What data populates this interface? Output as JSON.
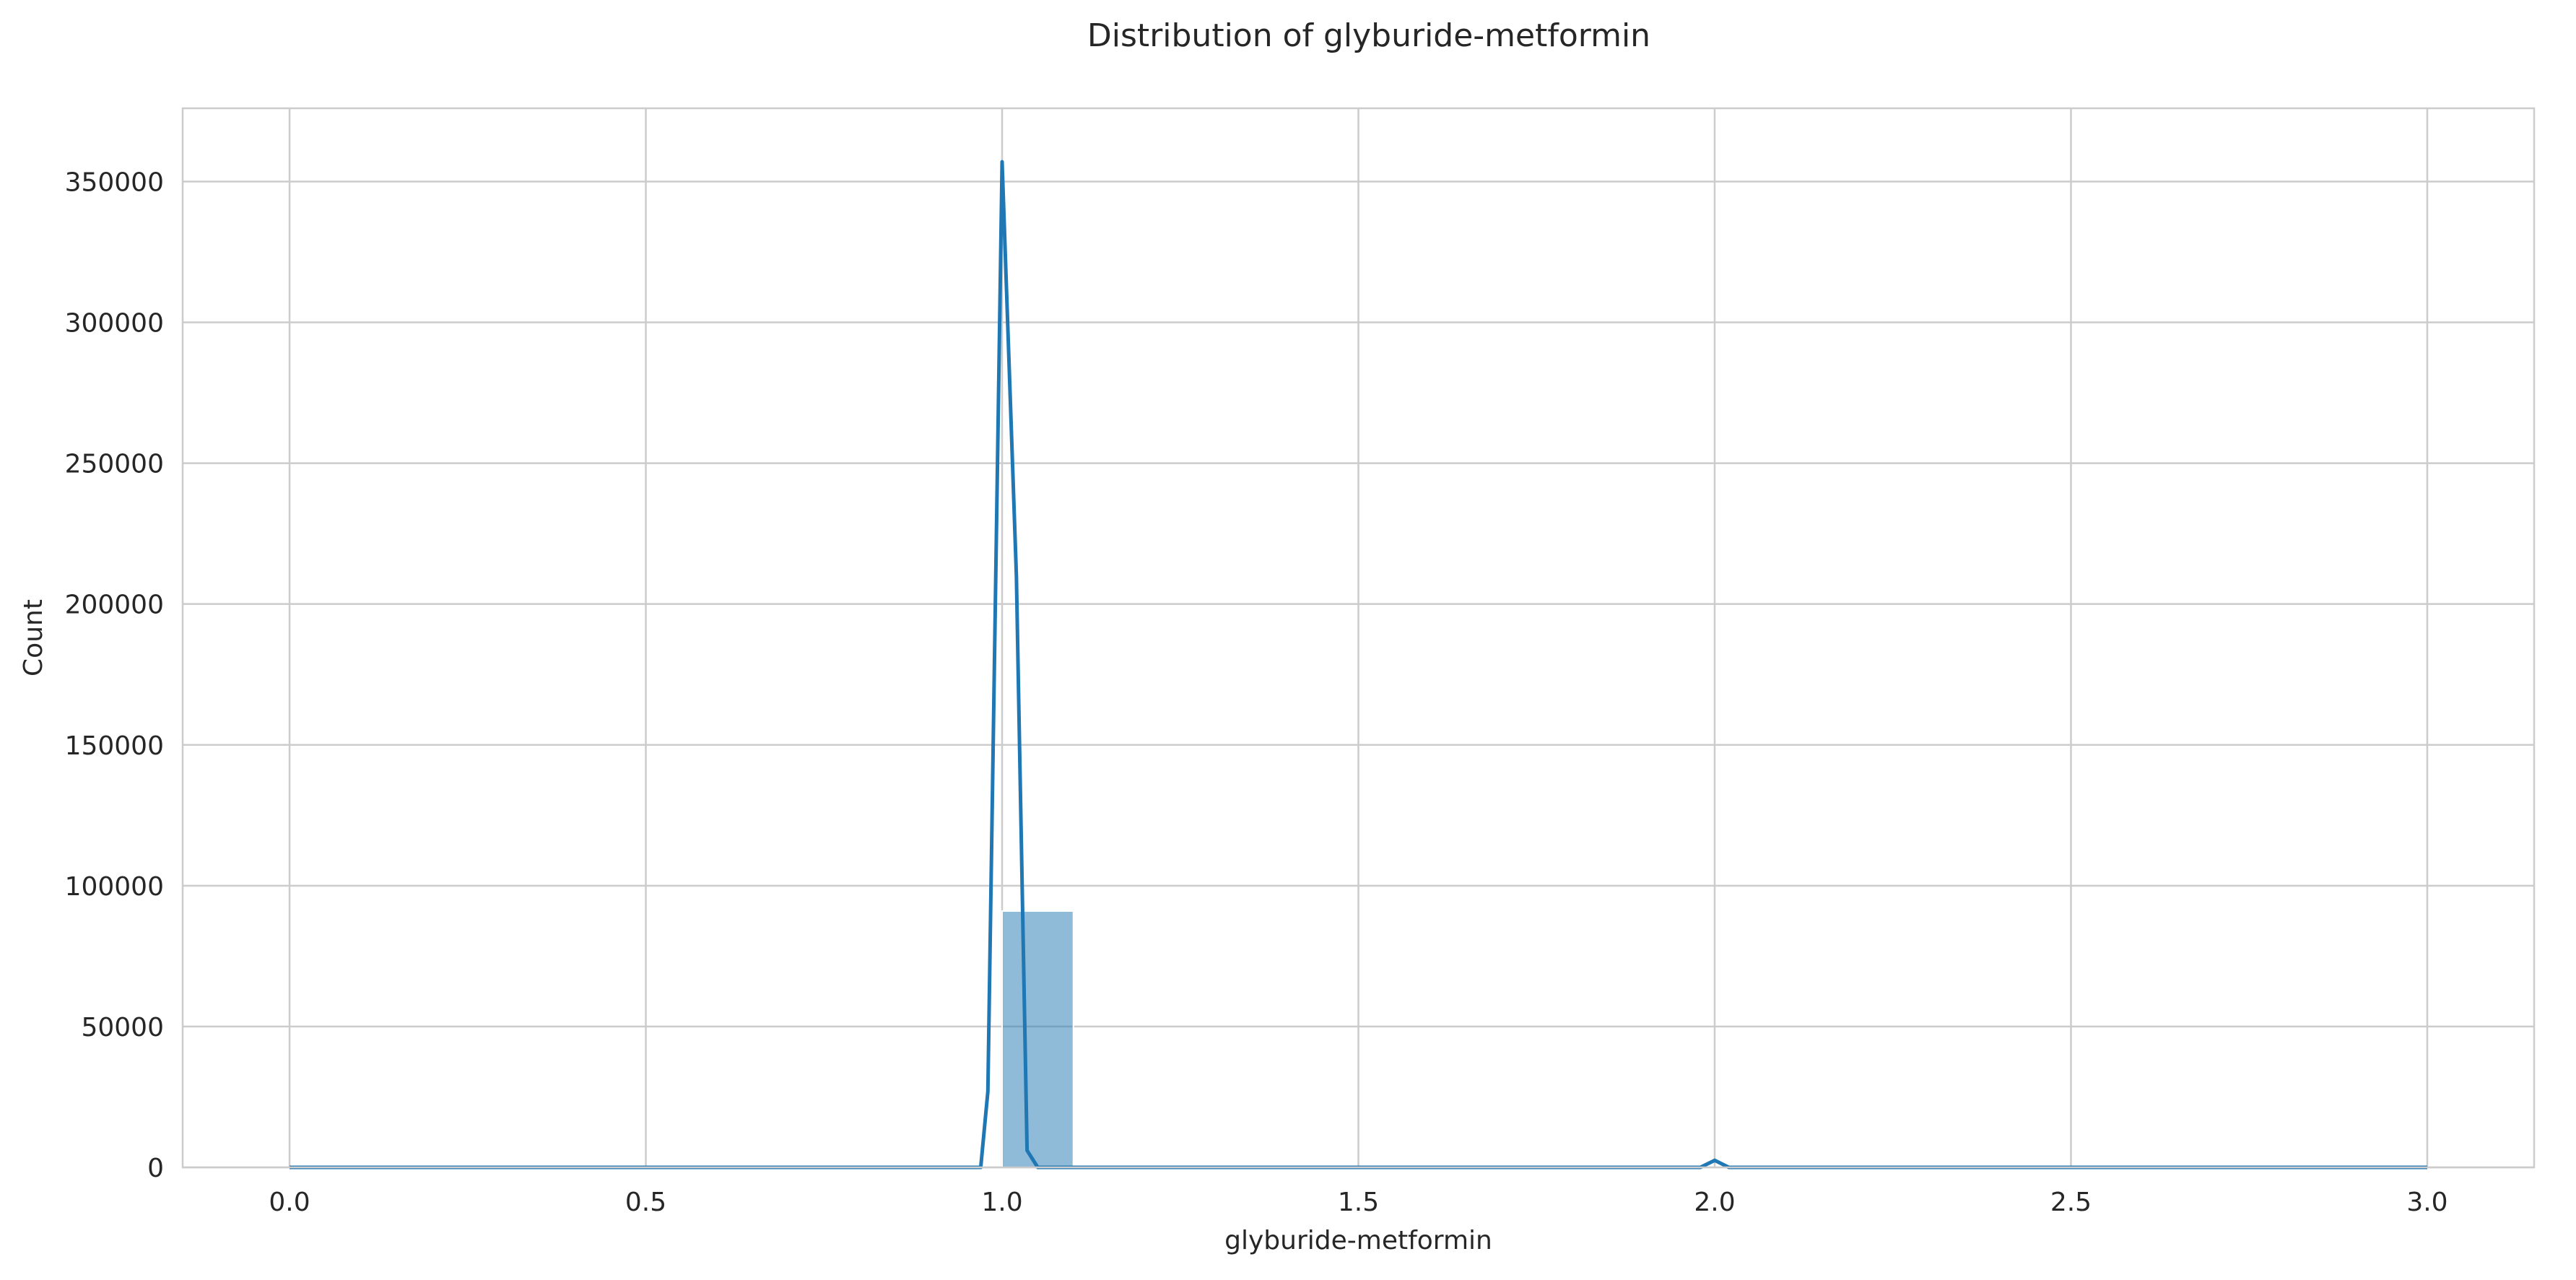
{
  "chart_data": {
    "type": "bar",
    "title": "Distribution of glyburide-metformin",
    "xlabel": "glyburide-metformin",
    "ylabel": "Count",
    "xlim": [
      -0.15,
      3.15
    ],
    "ylim": [
      0,
      376000
    ],
    "xticks": [
      0.0,
      0.5,
      1.0,
      1.5,
      2.0,
      2.5,
      3.0
    ],
    "xtick_labels": [
      "0.0",
      "0.5",
      "1.0",
      "1.5",
      "2.0",
      "2.5",
      "3.0"
    ],
    "yticks": [
      0,
      50000,
      100000,
      150000,
      200000,
      250000,
      300000,
      350000
    ],
    "ytick_labels": [
      "0",
      "50000",
      "100000",
      "150000",
      "200000",
      "250000",
      "300000",
      "350000"
    ],
    "grid": true,
    "histogram": {
      "series_color": "#1f77b4",
      "bar_opacity": 0.5,
      "bins": [
        {
          "x0": 0.0,
          "x1": 0.1,
          "count": 0
        },
        {
          "x0": 1.0,
          "x1": 1.1,
          "count": 91000
        },
        {
          "x0": 2.0,
          "x1": 2.1,
          "count": 0
        },
        {
          "x0": 3.0,
          "x1": 3.1,
          "count": 0
        }
      ]
    },
    "kde": {
      "color": "#1f77b4",
      "x": [
        0.0,
        0.97,
        0.98,
        1.0,
        1.02,
        1.035,
        1.05,
        1.98,
        2.0,
        2.02,
        2.04,
        3.0
      ],
      "y": [
        0,
        0,
        27000,
        357000,
        210000,
        6000,
        0,
        0,
        2500,
        0,
        0,
        0
      ]
    }
  }
}
